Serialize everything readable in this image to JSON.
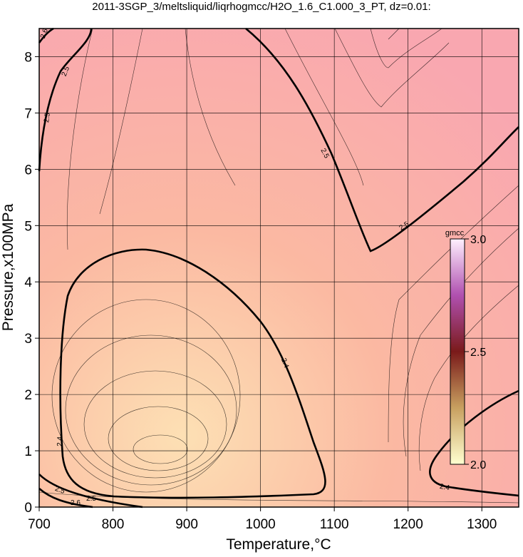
{
  "chart_data": {
    "type": "contour",
    "title": "2011-3SGP_3/meltsliquid/liqrhogmcc/H2O_1.6_C1.000_3_PT, dz=0.01:",
    "x_label": "Temperature,°C",
    "y_label": "Pressure,x100MPa",
    "xlim": [
      700,
      1350
    ],
    "xticks": [
      700,
      800,
      900,
      1000,
      1100,
      1200,
      1300
    ],
    "ylim": [
      0,
      8.5
    ],
    "yticks": [
      0,
      1,
      2,
      3,
      4,
      5,
      6,
      7,
      8
    ],
    "grid": true,
    "contour_levels": [
      2.4,
      2.5,
      2.6
    ],
    "colorbar": {
      "label": "gmcc",
      "lim": [
        2,
        3
      ],
      "ticks": [
        {
          "value": 2,
          "label": "2.0"
        },
        {
          "value": 2.5,
          "label": "2.5"
        },
        {
          "value": 3,
          "label": "3.0"
        }
      ]
    }
  }
}
